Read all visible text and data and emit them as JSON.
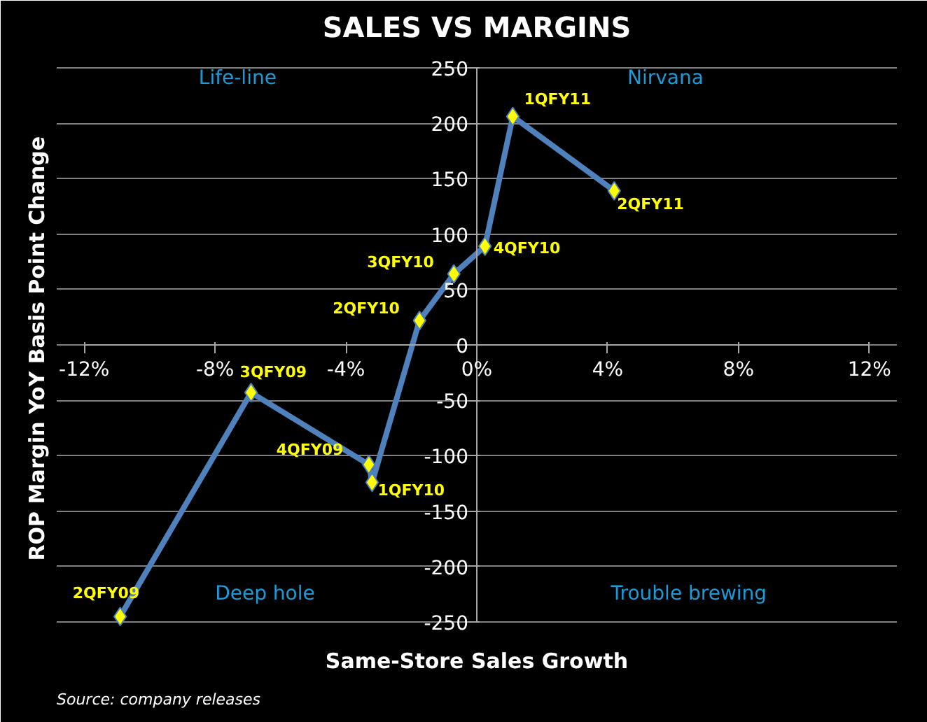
{
  "chart_data": {
    "type": "line",
    "title": "SALES VS MARGINS",
    "xlabel": "Same-Store Sales Growth",
    "ylabel": "ROP Margin  YoY Basis Point Change",
    "x": [
      -10.9,
      -6.9,
      -3.3,
      -3.2,
      -1.75,
      -0.7,
      0.25,
      1.1,
      4.2
    ],
    "series": [
      {
        "color": "#4f81bd",
        "colors": [
          "#ffff00",
          "#ffff00",
          "#ffff00",
          "#ffff00",
          "#ffff00",
          "#ffff00",
          "#ffff00",
          "#ffff00",
          "#ffff00"
        ],
        "values": [
          -245,
          -43,
          -108,
          -124,
          22,
          64,
          89,
          206,
          139
        ]
      }
    ],
    "marker": "diamond",
    "grid": "y",
    "xlim": [
      -12,
      12
    ],
    "ylim": [
      -250,
      250
    ],
    "xticks": [
      {
        "value": -12,
        "label": "-12%"
      },
      {
        "value": -8,
        "label": "-8%"
      },
      {
        "value": -4,
        "label": "-4%"
      },
      {
        "value": 0,
        "label": "0%"
      },
      {
        "value": 4,
        "label": "4%"
      },
      {
        "value": 8,
        "label": "8%"
      },
      {
        "value": 12,
        "label": "12%"
      }
    ],
    "yticks": [
      -250,
      -200,
      -150,
      -100,
      -50,
      0,
      50,
      100,
      150,
      200,
      250
    ],
    "annotations": [
      {
        "text": "2QFY09",
        "x": -10.9,
        "y": -245
      },
      {
        "text": "3QFY09",
        "x": -6.9,
        "y": -43
      },
      {
        "text": "4QFY09",
        "x": -3.3,
        "y": -108
      },
      {
        "text": "1QFY10",
        "x": -3.2,
        "y": -124
      },
      {
        "text": "2QFY10",
        "x": -1.75,
        "y": 22
      },
      {
        "text": "3QFY10",
        "x": -0.7,
        "y": 64
      },
      {
        "text": "4QFY10",
        "x": 0.25,
        "y": 89
      },
      {
        "text": "1QFY11",
        "x": 1.1,
        "y": 206
      },
      {
        "text": "2QFY11",
        "x": 4.2,
        "y": 139
      },
      "Life-line",
      "Nirvana",
      "Deep  hole",
      "Trouble brewing",
      "Source: company releases"
    ]
  }
}
